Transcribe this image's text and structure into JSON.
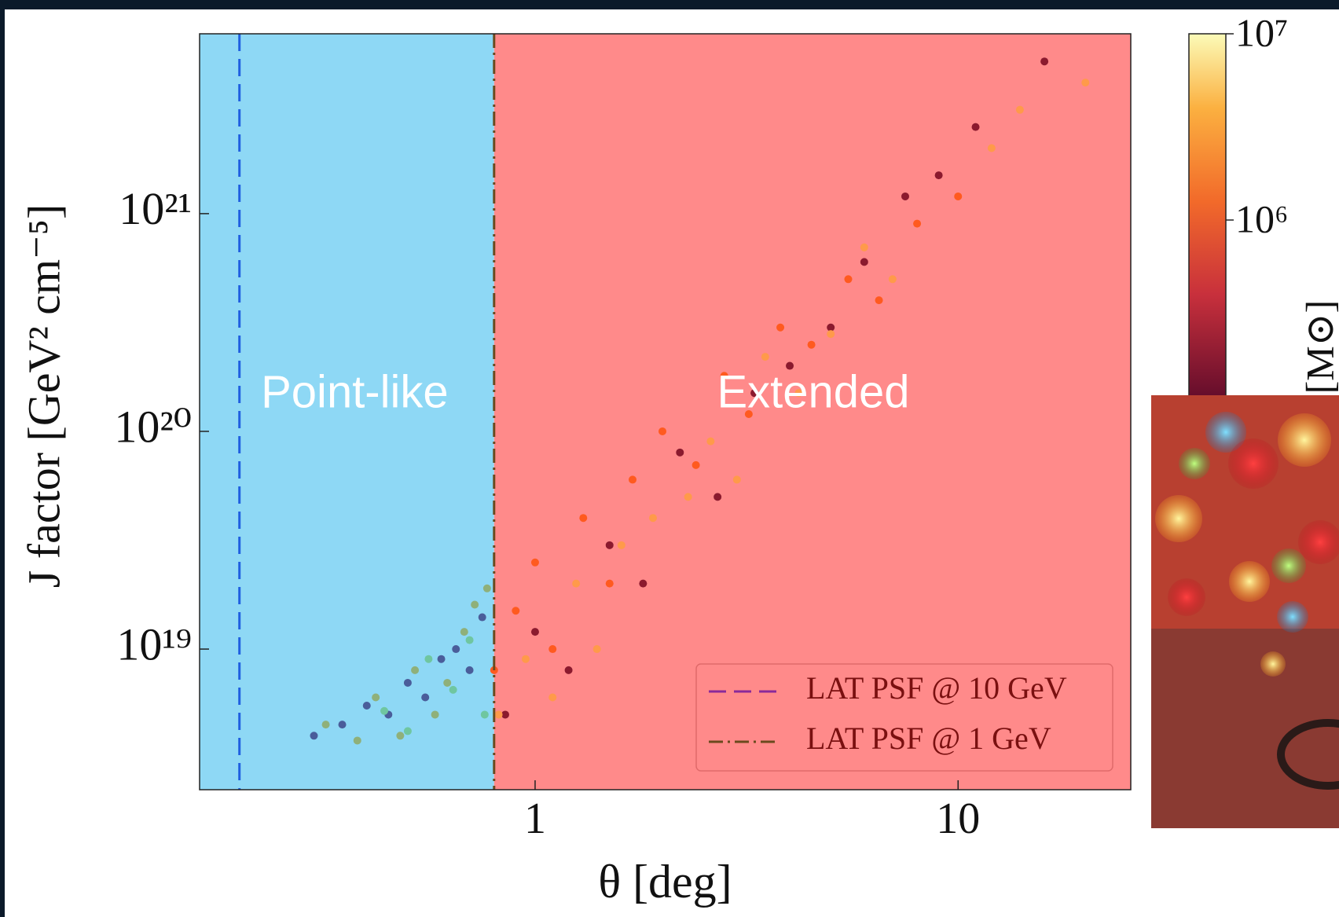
{
  "chart_data": {
    "type": "scatter",
    "x_label": "θ [deg]",
    "y_label": "J factor [GeV² cm⁻⁵]",
    "xscale": "log",
    "yscale": "log",
    "xlim": [
      0.161,
      25.6
    ],
    "ylim": [
      2.26e+18,
      6.7e+21
    ],
    "xticks": [
      1,
      10
    ],
    "yticks": [
      {
        "value": 1e+19,
        "label": "10¹⁹"
      },
      {
        "value": 1e+20,
        "label": "10²⁰"
      },
      {
        "value": 1e+21,
        "label": "10²¹"
      }
    ],
    "regions": [
      {
        "label": "Point-like",
        "x": [
          0.161,
          0.8
        ],
        "color": "#8ed8f5"
      },
      {
        "label": "Extended",
        "x": [
          0.8,
          25.6
        ],
        "color": "#ff8a8a"
      }
    ],
    "vlines": [
      {
        "name": "LAT PSF @ 10 GeV",
        "x": 0.2,
        "color": "#1f5fe0",
        "legend_color": "#8a2a9a",
        "dash": "22,10"
      },
      {
        "name": "LAT PSF @ 1 GeV",
        "x": 0.8,
        "color": "#6b4a1e",
        "legend_color": "#6b4a1e",
        "dash": "18,6,3,6"
      }
    ],
    "legend": "lower right",
    "series": [
      {
        "color": "#8b1a2e",
        "x": [
          0.85,
          1.0,
          1.2,
          1.5,
          1.8,
          2.2,
          2.7,
          3.3,
          4.0,
          5.0,
          6.0,
          7.5,
          9.0,
          11,
          16
        ],
        "values": [
          5e+18,
          1.2e+19,
          8e+18,
          3e+19,
          2e+19,
          8e+19,
          5e+19,
          1.5e+20,
          2e+20,
          3e+20,
          6e+20,
          1.2e+21,
          1.5e+21,
          2.5e+21,
          5e+21
        ]
      },
      {
        "color": "#ff5a1f",
        "x": [
          0.8,
          0.9,
          1.0,
          1.1,
          1.3,
          1.5,
          1.7,
          2.0,
          2.4,
          2.8,
          3.2,
          3.8,
          4.5,
          5.5,
          6.5,
          8,
          10
        ],
        "values": [
          8e+18,
          1.5e+19,
          2.5e+19,
          1e+19,
          4e+19,
          2e+19,
          6e+19,
          1e+20,
          7e+19,
          1.8e+20,
          1.2e+20,
          3e+20,
          2.5e+20,
          5e+20,
          4e+20,
          9e+20,
          1.2e+21
        ]
      },
      {
        "color": "#ff9a4a",
        "x": [
          0.82,
          0.95,
          1.1,
          1.25,
          1.4,
          1.6,
          1.9,
          2.3,
          2.6,
          3.0,
          3.5,
          4.2,
          5,
          6,
          7,
          12,
          14,
          20
        ],
        "values": [
          5e+18,
          9e+18,
          6e+18,
          2e+19,
          1e+19,
          3e+19,
          4e+19,
          5e+19,
          9e+19,
          6e+19,
          2.2e+20,
          1.5e+20,
          2.8e+20,
          7e+20,
          5e+20,
          2e+21,
          3e+21,
          4e+21
        ]
      },
      {
        "color": "#4a5d9a",
        "x": [
          0.3,
          0.35,
          0.4,
          0.45,
          0.5,
          0.55,
          0.6,
          0.65,
          0.7,
          0.75
        ],
        "values": [
          4e+18,
          4.5e+18,
          5.5e+18,
          5e+18,
          7e+18,
          6e+18,
          9e+18,
          1e+19,
          8e+18,
          1.4e+19
        ]
      },
      {
        "color": "#8fb07a",
        "x": [
          0.32,
          0.38,
          0.42,
          0.48,
          0.52,
          0.58,
          0.62,
          0.68,
          0.72,
          0.77
        ],
        "values": [
          4.5e+18,
          3.8e+18,
          6e+18,
          4e+18,
          8e+18,
          5e+18,
          7e+18,
          1.2e+19,
          1.6e+19,
          1.9e+19
        ]
      },
      {
        "color": "#6fc6a0",
        "x": [
          0.44,
          0.5,
          0.56,
          0.64,
          0.7,
          0.76
        ],
        "values": [
          5.2e+18,
          4.2e+18,
          9e+18,
          6.5e+18,
          1.1e+19,
          5e+18
        ]
      }
    ],
    "colorbar": {
      "label": "M̃ [M⊙]",
      "lim": [
        100000.0,
        10000000.0
      ],
      "ticks": [
        {
          "value": 1000000.0,
          "label": "10⁶"
        },
        {
          "value": 10000000.0,
          "label": "10⁷"
        }
      ]
    }
  }
}
